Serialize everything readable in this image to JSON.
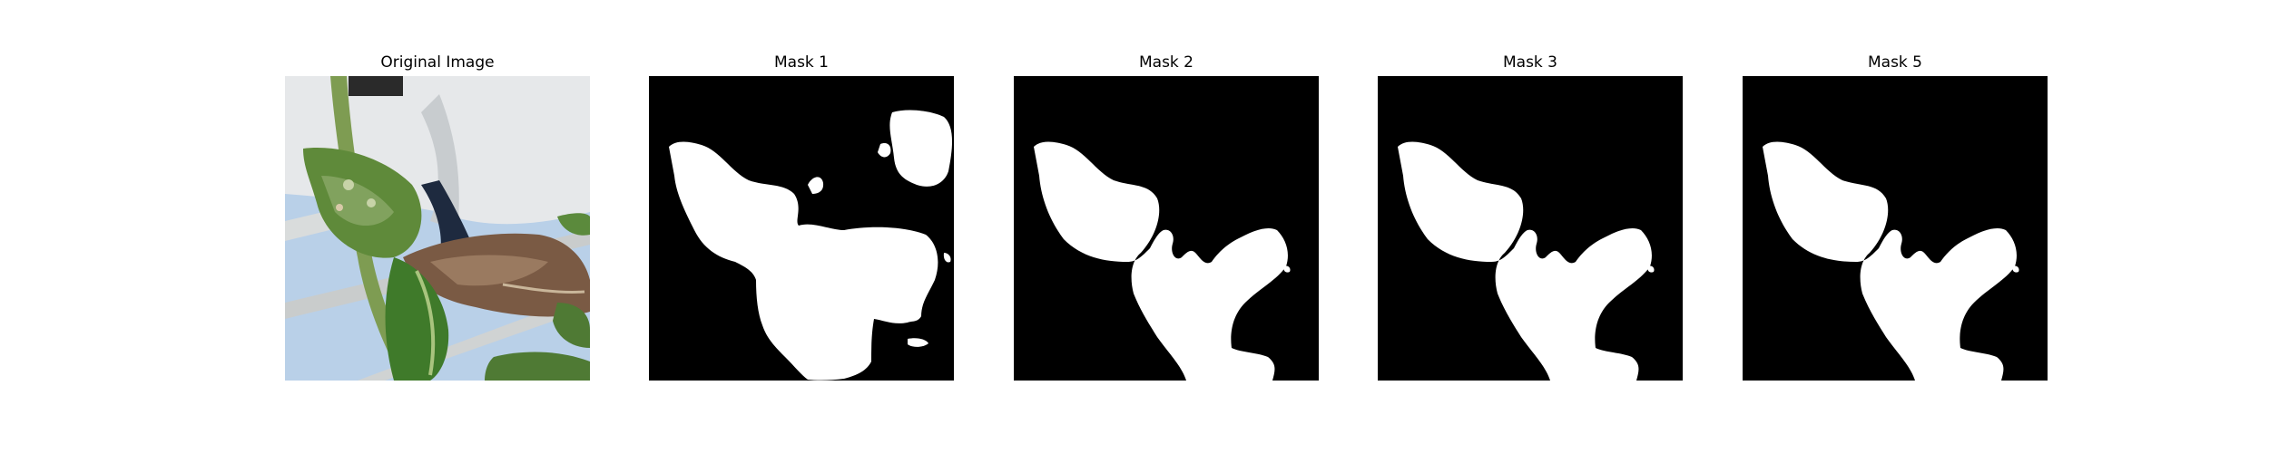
{
  "figure": {
    "panels": [
      {
        "title": "Original Image",
        "kind": "photo"
      },
      {
        "title": "Mask 1",
        "kind": "mask"
      },
      {
        "title": "Mask 2",
        "kind": "mask"
      },
      {
        "title": "Mask 3",
        "kind": "mask"
      },
      {
        "title": "Mask 5",
        "kind": "mask"
      }
    ]
  },
  "colors": {
    "mask_background": "#000000",
    "mask_foreground": "#ffffff",
    "sky": "#bcd3ea",
    "pot": "#e6e8ea",
    "leaf_green": "#4f7a34",
    "leaf_brown": "#7a5a44"
  }
}
